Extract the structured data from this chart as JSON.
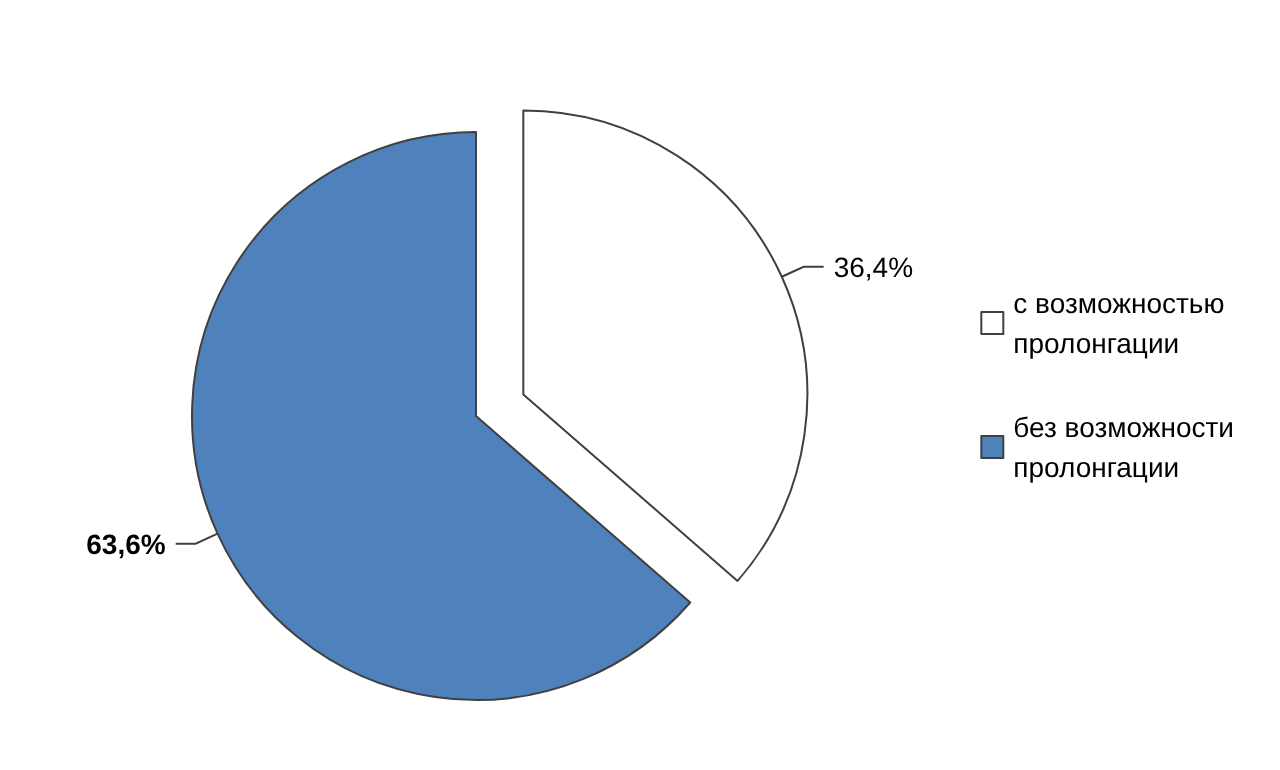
{
  "chart_data": {
    "type": "pie",
    "categories": [
      "с возможностью пролонгации",
      "без возможности пролонгации"
    ],
    "values": [
      36.4,
      63.6
    ],
    "colors": [
      "#ffffff",
      "#4f81bd"
    ],
    "value_labels": [
      "36,4%",
      "63,6%"
    ],
    "legend": "right"
  }
}
